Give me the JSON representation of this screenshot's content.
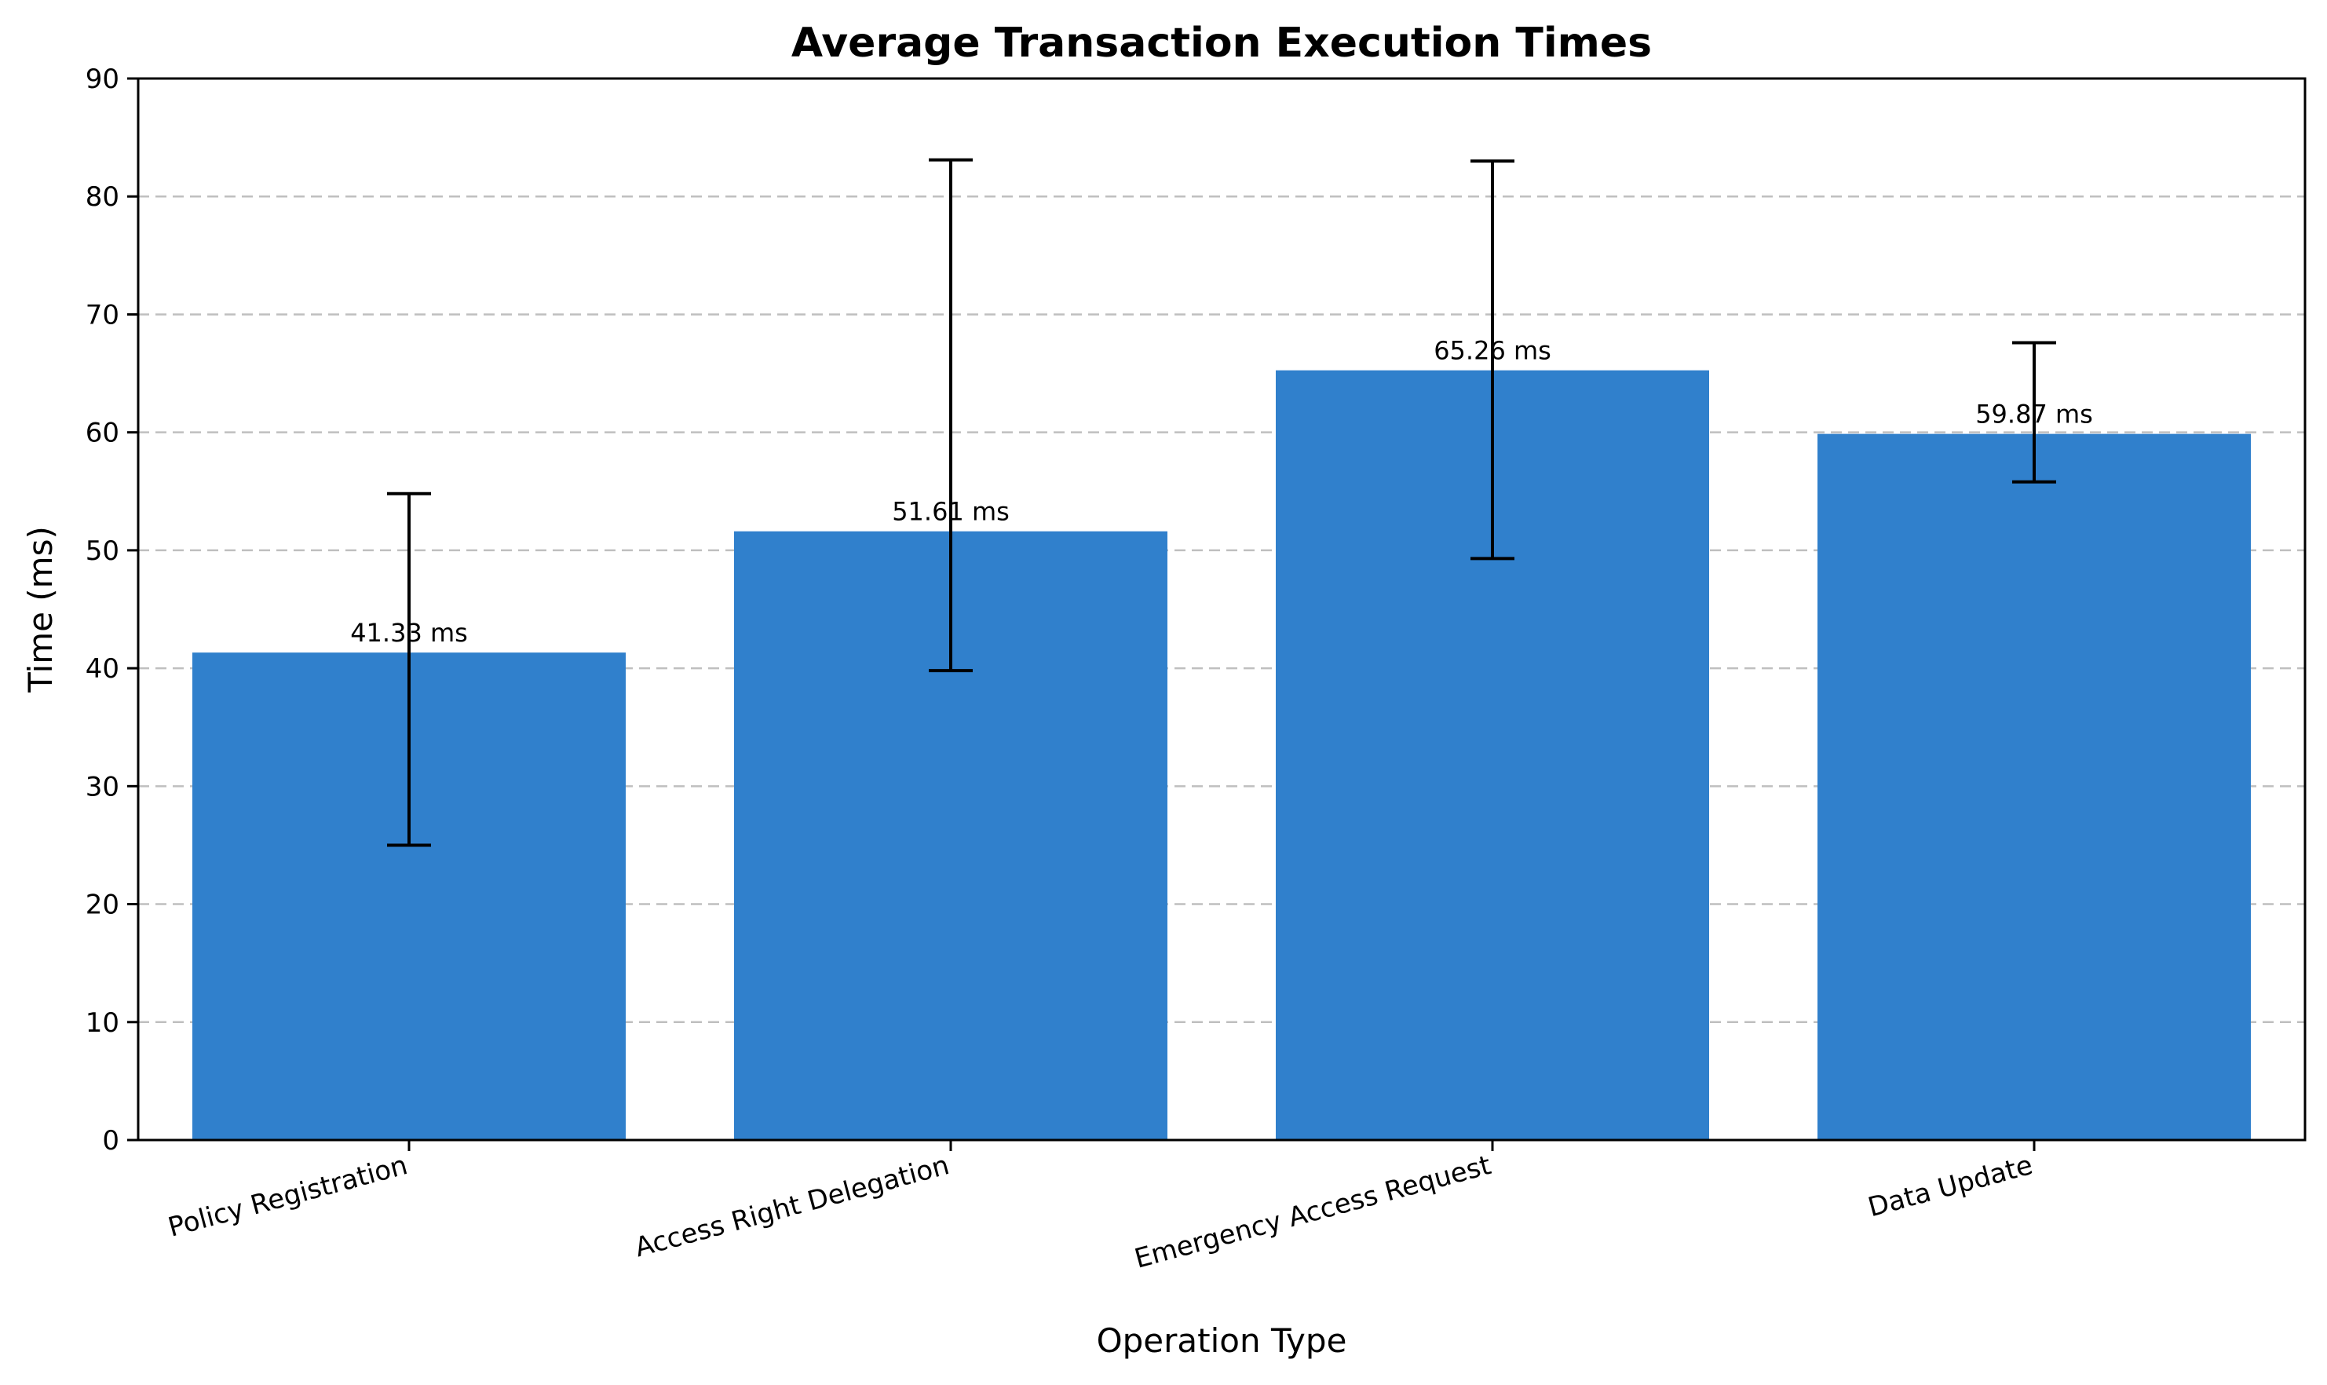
{
  "chart_data": {
    "type": "bar",
    "title": "Average Transaction Execution Times",
    "xlabel": "Operation Type",
    "ylabel": "Time (ms)",
    "ylim": [
      0,
      90
    ],
    "yticks": [
      0,
      10,
      20,
      30,
      40,
      50,
      60,
      70,
      80,
      90
    ],
    "grid": "y-dashed",
    "categories": [
      "Policy Registration",
      "Access Right Delegation",
      "Emergency Access Request",
      "Data Update"
    ],
    "values": [
      41.33,
      51.61,
      65.26,
      59.87
    ],
    "error_low": [
      25.0,
      39.8,
      49.3,
      55.8
    ],
    "error_high": [
      54.8,
      83.1,
      83.0,
      67.6
    ],
    "data_labels": [
      "41.33 ms",
      "51.61 ms",
      "65.26 ms",
      "59.87 ms"
    ],
    "bar_color": "#3080cc"
  }
}
